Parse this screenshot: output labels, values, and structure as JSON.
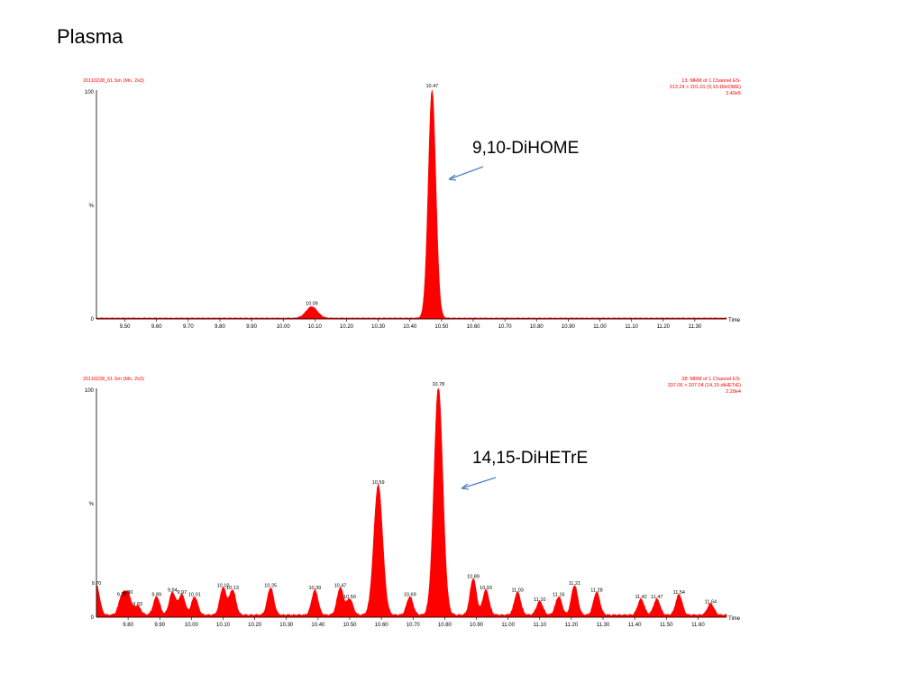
{
  "slide": {
    "title": "Plasma"
  },
  "chart_data": [
    {
      "type": "area",
      "header_left": "20110228_61.Sm (Mn, 2x3)",
      "header_right": [
        "13: MRM of 1 Channel ES-",
        "313.24 > 201.01 (9,10-DiHOME)",
        "3.40e5"
      ],
      "y_label": "%",
      "x_label": "Time",
      "xlim": [
        9.41,
        11.4
      ],
      "ylim": [
        0,
        100
      ],
      "y_ticks": [
        0,
        100
      ],
      "x_ticks": [
        "9.50",
        "9.60",
        "9.70",
        "9.80",
        "9.90",
        "10.00",
        "10.10",
        "10.20",
        "10.30",
        "10.40",
        "10.50",
        "10.60",
        "10.70",
        "10.80",
        "10.90",
        "11.00",
        "11.10",
        "11.20",
        "11.30"
      ],
      "peaks": [
        {
          "rt": 10.09,
          "label": "10.09",
          "height": 5
        },
        {
          "rt": 10.47,
          "label": "10.47",
          "height": 100
        }
      ],
      "annotation": {
        "text": "9,10-DiHOME"
      }
    },
    {
      "type": "area",
      "header_left": "20110228_61.Sm (Mn, 2x3)",
      "header_right": [
        "38: MRM of 1 Channel ES-",
        "337.06 > 207.04 (14,15-diHETrE)",
        "2.28e4"
      ],
      "y_label": "%",
      "x_label": "Time",
      "xlim": [
        9.7,
        11.69
      ],
      "ylim": [
        0,
        100
      ],
      "y_ticks": [
        0,
        100
      ],
      "x_ticks": [
        "9.80",
        "9.90",
        "10.00",
        "10.10",
        "10.20",
        "10.30",
        "10.40",
        "10.50",
        "10.60",
        "10.70",
        "10.80",
        "10.90",
        "11.00",
        "11.10",
        "11.20",
        "11.30",
        "11.40",
        "11.50",
        "11.60"
      ],
      "peaks": [
        {
          "rt": 9.7,
          "label": "9.70",
          "height": 13
        },
        {
          "rt": 9.78,
          "label": "9.78",
          "height": 8
        },
        {
          "rt": 9.8,
          "label": "9.80",
          "height": 9
        },
        {
          "rt": 9.83,
          "label": "9.83",
          "height": 4
        },
        {
          "rt": 9.89,
          "label": "9.89",
          "height": 8
        },
        {
          "rt": 9.94,
          "label": "9.94",
          "height": 10
        },
        {
          "rt": 9.97,
          "label": "9.97",
          "height": 9
        },
        {
          "rt": 10.01,
          "label": "10.01",
          "height": 8
        },
        {
          "rt": 10.1,
          "label": "10.10",
          "height": 12
        },
        {
          "rt": 10.13,
          "label": "10.13",
          "height": 11
        },
        {
          "rt": 10.25,
          "label": "10.25",
          "height": 12
        },
        {
          "rt": 10.39,
          "label": "10.39",
          "height": 11
        },
        {
          "rt": 10.47,
          "label": "10.47",
          "height": 12
        },
        {
          "rt": 10.5,
          "label": "10.50",
          "height": 7
        },
        {
          "rt": 10.59,
          "label": "10.59",
          "height": 57
        },
        {
          "rt": 10.69,
          "label": "10.69",
          "height": 8
        },
        {
          "rt": 10.78,
          "label": "10.78",
          "height": 100
        },
        {
          "rt": 10.89,
          "label": "10.89",
          "height": 16
        },
        {
          "rt": 10.93,
          "label": "10.93",
          "height": 11
        },
        {
          "rt": 11.03,
          "label": "11.03",
          "height": 10
        },
        {
          "rt": 11.1,
          "label": "11.10",
          "height": 6
        },
        {
          "rt": 11.16,
          "label": "11.16",
          "height": 8
        },
        {
          "rt": 11.21,
          "label": "11.21",
          "height": 13
        },
        {
          "rt": 11.28,
          "label": "11.28",
          "height": 10
        },
        {
          "rt": 11.42,
          "label": "11.42",
          "height": 7
        },
        {
          "rt": 11.47,
          "label": "11.47",
          "height": 7
        },
        {
          "rt": 11.54,
          "label": "11.54",
          "height": 9
        },
        {
          "rt": 11.64,
          "label": "11.64",
          "height": 5
        }
      ],
      "annotation": {
        "text": "14,15-DiHETrE"
      }
    }
  ],
  "colors": {
    "trace": "#ff0000",
    "arrow": "#4f81bd",
    "header": "#ff0000"
  }
}
